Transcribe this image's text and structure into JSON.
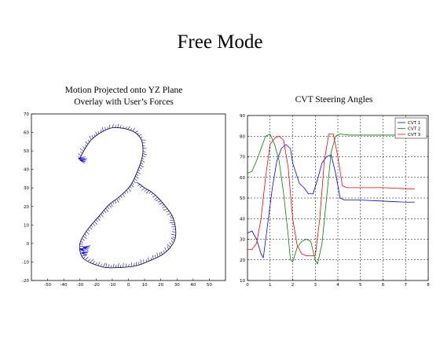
{
  "slide": {
    "title": "Free Mode"
  },
  "chart_data": [
    {
      "type": "line",
      "title_lines": [
        "Motion Projected onto YZ Plane",
        "Overlay with User’s Forces"
      ],
      "xlim": [
        -60,
        60
      ],
      "ylim": [
        -20,
        70
      ],
      "xticks": [
        -50,
        -40,
        -30,
        -20,
        -10,
        0,
        10,
        20,
        30,
        40,
        50
      ],
      "yticks": [
        -20,
        -10,
        0,
        10,
        20,
        30,
        40,
        50,
        60,
        70
      ],
      "grid": false,
      "series": [
        {
          "color": "#000000",
          "points": [
            [
              -30,
              46
            ],
            [
              -27,
              51
            ],
            [
              -23,
              56
            ],
            [
              -17,
              60
            ],
            [
              -10,
              62.5
            ],
            [
              -2,
              62
            ],
            [
              4,
              60
            ],
            [
              8,
              56
            ],
            [
              9,
              50
            ],
            [
              8,
              45
            ],
            [
              6,
              40
            ],
            [
              3,
              34
            ],
            [
              0,
              30
            ],
            [
              -6,
              25
            ],
            [
              -12,
              21
            ],
            [
              -18,
              15
            ],
            [
              -24,
              9
            ],
            [
              -28,
              4
            ],
            [
              -30,
              0
            ],
            [
              -30,
              -4
            ],
            [
              -28,
              -8
            ],
            [
              -22,
              -11
            ],
            [
              -14,
              -13
            ],
            [
              -5,
              -13
            ],
            [
              5,
              -12
            ],
            [
              14,
              -9
            ],
            [
              21,
              -6
            ],
            [
              26,
              -2
            ],
            [
              29,
              3
            ],
            [
              29,
              9
            ],
            [
              27,
              15
            ],
            [
              23,
              20
            ],
            [
              18,
              25
            ],
            [
              14,
              28
            ],
            [
              10,
              30
            ],
            [
              7,
              32
            ],
            [
              5,
              33
            ]
          ]
        }
      ],
      "force_vectors": {
        "color": "#0000ff",
        "description": "User force vectors drawn as short blue ticks along the path"
      }
    },
    {
      "type": "line",
      "title": "CVT Steering Angles",
      "xlim": [
        0,
        8
      ],
      "ylim": [
        10,
        90
      ],
      "xticks": [
        0,
        1,
        2,
        3,
        4,
        5,
        6,
        7,
        8
      ],
      "yticks": [
        10,
        20,
        30,
        40,
        50,
        60,
        70,
        80,
        90
      ],
      "grid": true,
      "legend_position": "top-right",
      "series": [
        {
          "name": "CVT 1",
          "color": "#0000ff",
          "x": [
            0,
            0.2,
            0.4,
            0.6,
            0.7,
            0.9,
            1.1,
            1.3,
            1.5,
            1.7,
            1.9,
            2.0,
            2.3,
            2.5,
            2.7,
            2.9,
            3.1,
            3.3,
            3.5,
            3.7,
            3.9,
            4.1,
            4.3,
            5,
            6,
            7,
            7.4
          ],
          "y": [
            33,
            34,
            30,
            23,
            21,
            38,
            55,
            68,
            74,
            76,
            74,
            67,
            57,
            55,
            52,
            52,
            59,
            67,
            70,
            71,
            62,
            50,
            49,
            49,
            48.5,
            48,
            48
          ]
        },
        {
          "name": "CVT 2",
          "color": "#008000",
          "x": [
            0,
            0.2,
            0.4,
            0.6,
            0.8,
            1.0,
            1.2,
            1.4,
            1.6,
            1.8,
            1.9,
            2.0,
            2.2,
            2.4,
            2.6,
            2.8,
            3.0,
            3.1,
            3.3,
            3.5,
            3.7,
            3.9,
            4.1,
            4.5,
            5,
            6,
            7,
            7.4
          ],
          "y": [
            62,
            63,
            68,
            74,
            80,
            81,
            76,
            68,
            52,
            32,
            20,
            19,
            26,
            29,
            30,
            29,
            20,
            18,
            28,
            50,
            72,
            80,
            81,
            80.5,
            80.5,
            80.5,
            80.5,
            80.5
          ]
        },
        {
          "name": "CVT 3",
          "color": "#ff0000",
          "x": [
            0,
            0.2,
            0.4,
            0.6,
            0.8,
            1.0,
            1.2,
            1.4,
            1.6,
            1.8,
            2.0,
            2.2,
            2.4,
            2.6,
            2.8,
            3.0,
            3.2,
            3.4,
            3.6,
            3.8,
            4.0,
            4.2,
            4.4,
            5,
            6,
            7,
            7.4
          ],
          "y": [
            25,
            25,
            28,
            40,
            60,
            76,
            79,
            80,
            78,
            65,
            40,
            27,
            23,
            22,
            22,
            22,
            40,
            68,
            81,
            81,
            70,
            56,
            55,
            55,
            55,
            54.5,
            54.5
          ]
        }
      ]
    }
  ]
}
